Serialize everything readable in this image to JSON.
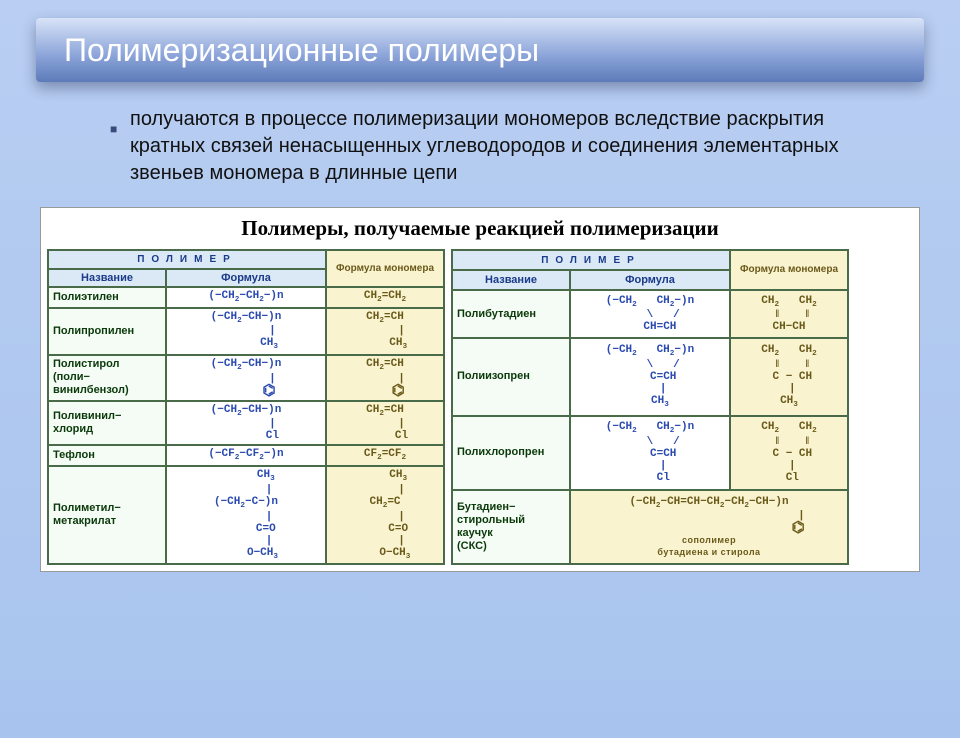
{
  "slide": {
    "title": "Полимеризационные полимеры",
    "subtitle": "получаются в процессе полимеризации мономеров вследствие раскрытия кратных связей ненасыщенных углеводородов и соединения элементарных звеньев мономера в длинные цепи",
    "table_title": "Полимеры, получаемые реакцией полимеризации",
    "headers": {
      "polymer": "ПОЛИМЕР",
      "name": "Название",
      "formula": "Формула",
      "monomer": "Формула мономера"
    },
    "left_rows": [
      {
        "name": "Полиэтилен",
        "formula": "(−CH<sub>2</sub>−CH<sub>2</sub>−)n",
        "monomer": "CH<sub>2</sub>=CH<sub>2</sub>"
      },
      {
        "name": "Полипропилен",
        "formula": "(−CH<sub>2</sub>−CH−)n<br>&nbsp;&nbsp;&nbsp;&nbsp;&nbsp;&nbsp;&nbsp;&nbsp;|<br>&nbsp;&nbsp;&nbsp;&nbsp;&nbsp;&nbsp;&nbsp;CH<sub>3</sub>",
        "monomer": "CH<sub>2</sub>=CH<br>&nbsp;&nbsp;&nbsp;&nbsp;&nbsp;|<br>&nbsp;&nbsp;&nbsp;&nbsp;CH<sub>3</sub>"
      },
      {
        "name": "Полистирол<br>(поли−<br>винилбензол)",
        "formula": "(−CH<sub>2</sub>−CH−)n<br>&nbsp;&nbsp;&nbsp;&nbsp;&nbsp;&nbsp;&nbsp;&nbsp;|<br>&nbsp;&nbsp;&nbsp;&nbsp;&nbsp;&nbsp;&nbsp;<span class='benz'>⌬</span>",
        "monomer": "CH<sub>2</sub>=CH<br>&nbsp;&nbsp;&nbsp;&nbsp;&nbsp;|<br>&nbsp;&nbsp;&nbsp;&nbsp;<span class='benz'>⌬</span>"
      },
      {
        "name": "Поливинил−<br>хлорид",
        "formula": "(−CH<sub>2</sub>−CH−)n<br>&nbsp;&nbsp;&nbsp;&nbsp;&nbsp;&nbsp;&nbsp;&nbsp;|<br>&nbsp;&nbsp;&nbsp;&nbsp;&nbsp;&nbsp;&nbsp;&nbsp;Cl",
        "monomer": "CH<sub>2</sub>=CH<br>&nbsp;&nbsp;&nbsp;&nbsp;&nbsp;|<br>&nbsp;&nbsp;&nbsp;&nbsp;&nbsp;Cl"
      },
      {
        "name": "Тефлон",
        "formula": "(−CF<sub>2</sub>−CF<sub>2</sub>−)n",
        "monomer": "CF<sub>2</sub>=CF<sub>2</sub>"
      },
      {
        "name": "Полиметил−<br>метакрилат",
        "formula": "&nbsp;&nbsp;&nbsp;&nbsp;&nbsp;&nbsp;CH<sub>3</sub><br>&nbsp;&nbsp;&nbsp;&nbsp;&nbsp;&nbsp;&nbsp;|<br>(−CH<sub>2</sub>−C−)n<br>&nbsp;&nbsp;&nbsp;&nbsp;&nbsp;&nbsp;&nbsp;|<br>&nbsp;&nbsp;&nbsp;&nbsp;&nbsp;&nbsp;C=O<br>&nbsp;&nbsp;&nbsp;&nbsp;&nbsp;&nbsp;&nbsp;|<br>&nbsp;&nbsp;&nbsp;&nbsp;&nbsp;O−CH<sub>3</sub>",
        "monomer": "&nbsp;&nbsp;&nbsp;&nbsp;CH<sub>3</sub><br>&nbsp;&nbsp;&nbsp;&nbsp;&nbsp;|<br>CH<sub>2</sub>=C<br>&nbsp;&nbsp;&nbsp;&nbsp;&nbsp;|<br>&nbsp;&nbsp;&nbsp;&nbsp;C=O<br>&nbsp;&nbsp;&nbsp;&nbsp;&nbsp;|<br>&nbsp;&nbsp;&nbsp;O−CH<sub>3</sub>"
      }
    ],
    "right_rows": [
      {
        "name": "Полибутадиен",
        "formula": "(−CH<sub>2</sub>&nbsp;&nbsp;&nbsp;CH<sub>2</sub>−)n<br>&nbsp;&nbsp;&nbsp;&nbsp;\\&nbsp;&nbsp;&nbsp;/<br>&nbsp;&nbsp;&nbsp;CH=CH",
        "monomer": "CH<sub>2</sub>&nbsp;&nbsp;&nbsp;CH<sub>2</sub><br>&nbsp;‖&nbsp;&nbsp;&nbsp;&nbsp;‖<br>CH−CH"
      },
      {
        "name": "Полиизопрен",
        "formula": "(−CH<sub>2</sub>&nbsp;&nbsp;&nbsp;CH<sub>2</sub>−)n<br>&nbsp;&nbsp;&nbsp;&nbsp;\\&nbsp;&nbsp;&nbsp;/<br>&nbsp;&nbsp;&nbsp;&nbsp;C=CH<br>&nbsp;&nbsp;&nbsp;&nbsp;|<br>&nbsp;&nbsp;&nbsp;CH<sub>3</sub>",
        "monomer": "CH<sub>2</sub>&nbsp;&nbsp;&nbsp;CH<sub>2</sub><br>&nbsp;‖&nbsp;&nbsp;&nbsp;&nbsp;‖<br>&nbsp;C − CH<br>&nbsp;|<br>CH<sub>3</sub>"
      },
      {
        "name": "Полихлоропрен",
        "formula": "(−CH<sub>2</sub>&nbsp;&nbsp;&nbsp;CH<sub>2</sub>−)n<br>&nbsp;&nbsp;&nbsp;&nbsp;\\&nbsp;&nbsp;&nbsp;/<br>&nbsp;&nbsp;&nbsp;&nbsp;C=CH<br>&nbsp;&nbsp;&nbsp;&nbsp;|<br>&nbsp;&nbsp;&nbsp;&nbsp;Cl",
        "monomer": "CH<sub>2</sub>&nbsp;&nbsp;&nbsp;CH<sub>2</sub><br>&nbsp;‖&nbsp;&nbsp;&nbsp;&nbsp;‖<br>&nbsp;C − CH<br>&nbsp;|<br>&nbsp;Cl"
      },
      {
        "name": "Бутадиен−<br>стирольный<br>каучук<br>(СКС)",
        "formula_span2": "(−CH<sub>2</sub>−CH=CH−CH<sub>2</sub>−CH<sub>2</sub>−CH−)n<br>&nbsp;&nbsp;&nbsp;&nbsp;&nbsp;&nbsp;&nbsp;&nbsp;&nbsp;&nbsp;&nbsp;&nbsp;&nbsp;&nbsp;&nbsp;&nbsp;&nbsp;&nbsp;&nbsp;&nbsp;&nbsp;&nbsp;&nbsp;&nbsp;&nbsp;&nbsp;&nbsp;&nbsp;|<br>&nbsp;&nbsp;&nbsp;&nbsp;&nbsp;&nbsp;&nbsp;&nbsp;&nbsp;&nbsp;&nbsp;&nbsp;&nbsp;&nbsp;&nbsp;&nbsp;&nbsp;&nbsp;&nbsp;&nbsp;&nbsp;&nbsp;&nbsp;&nbsp;&nbsp;&nbsp;&nbsp;<span class='benz'>⌬</span><br><span class='small-note'>сополимер<br>бутадиена и стирола</span>"
      }
    ]
  }
}
